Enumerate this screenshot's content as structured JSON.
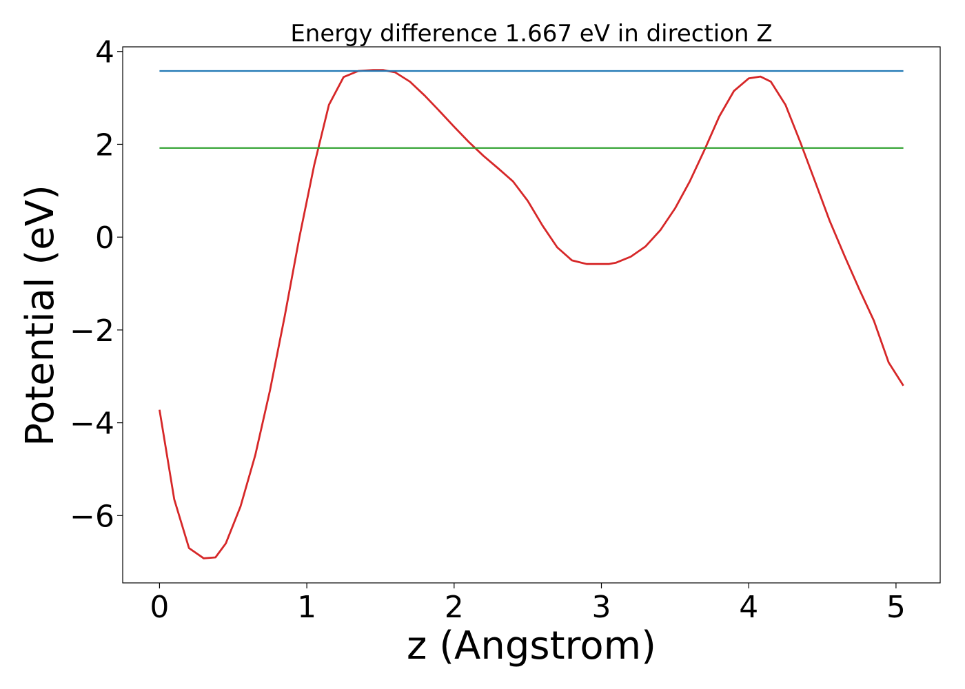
{
  "chart_data": {
    "type": "line",
    "title": "Energy difference 1.667 eV in direction Z",
    "xlabel": "z (Angstrom)",
    "ylabel": "Potential (eV)",
    "xlim": [
      -0.25,
      5.3
    ],
    "ylim": [
      -7.45,
      4.1
    ],
    "xticks": [
      0,
      1,
      2,
      3,
      4,
      5
    ],
    "yticks": [
      -6,
      -4,
      -2,
      0,
      2,
      4
    ],
    "xtick_labels": [
      "0",
      "1",
      "2",
      "3",
      "4",
      "5"
    ],
    "ytick_labels": [
      "−6",
      "−4",
      "−2",
      "0",
      "2",
      "4"
    ],
    "grid": false,
    "series": [
      {
        "color": "#d62728",
        "x": [
          0.0,
          0.1,
          0.2,
          0.3,
          0.38,
          0.45,
          0.55,
          0.65,
          0.75,
          0.85,
          0.95,
          1.05,
          1.15,
          1.25,
          1.35,
          1.45,
          1.52,
          1.6,
          1.7,
          1.8,
          1.9,
          2.0,
          2.1,
          2.2,
          2.3,
          2.4,
          2.5,
          2.6,
          2.7,
          2.8,
          2.9,
          3.0,
          3.05,
          3.1,
          3.2,
          3.3,
          3.4,
          3.5,
          3.6,
          3.7,
          3.8,
          3.9,
          4.0,
          4.08,
          4.15,
          4.25,
          4.35,
          4.45,
          4.55,
          4.65,
          4.75,
          4.85,
          4.95,
          5.05
        ],
        "y": [
          -3.72,
          -5.65,
          -6.7,
          -6.92,
          -6.9,
          -6.6,
          -5.8,
          -4.7,
          -3.3,
          -1.7,
          0.0,
          1.55,
          2.85,
          3.45,
          3.58,
          3.6,
          3.6,
          3.55,
          3.35,
          3.05,
          2.72,
          2.38,
          2.05,
          1.75,
          1.48,
          1.2,
          0.78,
          0.25,
          -0.22,
          -0.5,
          -0.58,
          -0.58,
          -0.58,
          -0.55,
          -0.42,
          -0.2,
          0.15,
          0.62,
          1.2,
          1.88,
          2.6,
          3.15,
          3.42,
          3.46,
          3.35,
          2.85,
          2.05,
          1.2,
          0.35,
          -0.4,
          -1.12,
          -1.8,
          -2.7,
          -3.2
        ]
      },
      {
        "color": "#1f77b4",
        "x": [
          0.0,
          5.05
        ],
        "y": [
          3.58,
          3.58
        ]
      },
      {
        "color": "#2ca02c",
        "x": [
          0.0,
          5.05
        ],
        "y": [
          1.92,
          1.92
        ]
      }
    ]
  }
}
